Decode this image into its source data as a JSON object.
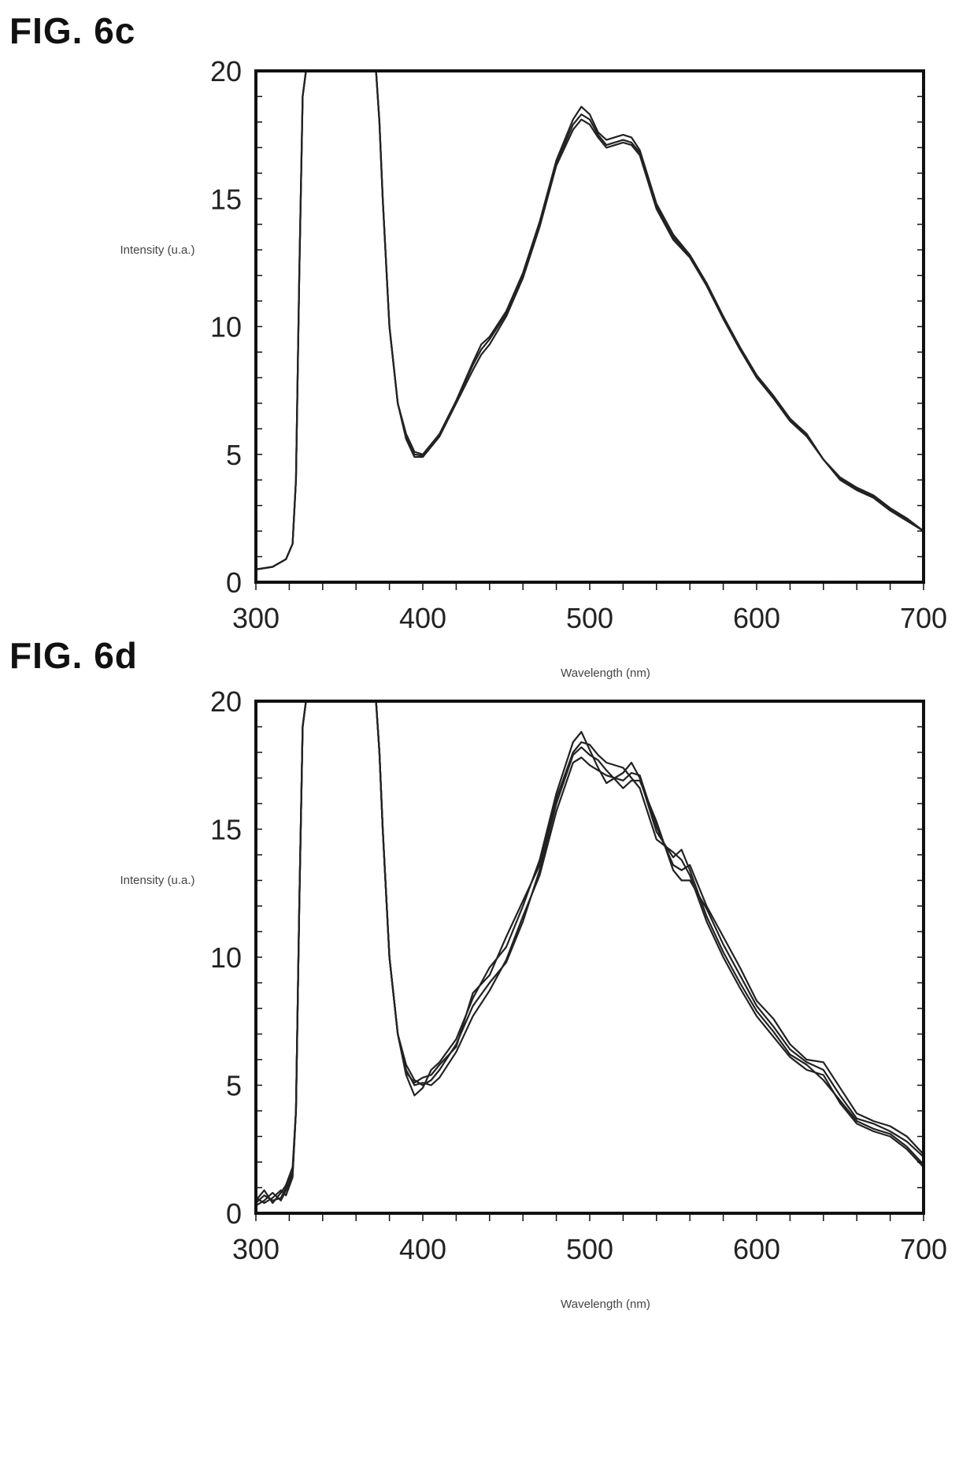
{
  "figures": [
    {
      "label": "FIG. 6c"
    },
    {
      "label": "FIG. 6d"
    }
  ],
  "chart_data": [
    {
      "type": "line",
      "title": "",
      "xlabel": "Wavelength (nm)",
      "ylabel": "Intensity (u.a.)",
      "xlim": [
        300,
        700
      ],
      "ylim": [
        0,
        20
      ],
      "xticks": [
        300,
        400,
        500,
        600,
        700
      ],
      "yticks": [
        0,
        5,
        10,
        15,
        20
      ],
      "grid": false,
      "line_color": "#222222",
      "series": [
        {
          "x": [
            300,
            310,
            318,
            322,
            324,
            326,
            328,
            330,
            372,
            374,
            376,
            380,
            385,
            390,
            395,
            400,
            410,
            420,
            430,
            435,
            440,
            450,
            460,
            470,
            480,
            490,
            495,
            500,
            505,
            510,
            520,
            525,
            530,
            540,
            550,
            560,
            570,
            580,
            590,
            600,
            610,
            620,
            630,
            640,
            650,
            660,
            670,
            680,
            690,
            700
          ],
          "y": [
            0.5,
            0.6,
            0.9,
            1.5,
            4,
            12,
            19,
            20,
            20,
            18,
            15,
            10,
            7,
            5.8,
            5.1,
            5.0,
            5.8,
            7.1,
            8.6,
            9.3,
            9.6,
            10.6,
            12.1,
            14.1,
            16.5,
            18.1,
            18.6,
            18.3,
            17.6,
            17.3,
            17.5,
            17.4,
            16.9,
            14.8,
            13.6,
            12.8,
            11.7,
            10.4,
            9.2,
            8.1,
            7.3,
            6.4,
            5.8,
            4.8,
            4.1,
            3.7,
            3.4,
            2.9,
            2.5,
            2.0
          ]
        },
        {
          "x": [
            300,
            310,
            318,
            322,
            324,
            326,
            328,
            330,
            372,
            374,
            376,
            380,
            385,
            390,
            395,
            400,
            410,
            420,
            430,
            435,
            440,
            450,
            460,
            470,
            480,
            490,
            495,
            500,
            505,
            510,
            520,
            525,
            530,
            540,
            550,
            560,
            570,
            580,
            590,
            600,
            610,
            620,
            630,
            640,
            650,
            660,
            670,
            680,
            690,
            700
          ],
          "y": [
            0.5,
            0.6,
            0.9,
            1.5,
            4,
            12,
            19,
            20,
            20,
            18,
            15,
            10,
            7,
            5.6,
            4.9,
            4.9,
            5.7,
            7.0,
            8.3,
            8.9,
            9.3,
            10.4,
            11.9,
            13.9,
            16.3,
            17.7,
            18.1,
            17.9,
            17.4,
            17.0,
            17.2,
            17.1,
            16.7,
            14.6,
            13.4,
            12.7,
            11.6,
            10.3,
            9.1,
            8.0,
            7.2,
            6.3,
            5.7,
            4.8,
            4.0,
            3.6,
            3.3,
            2.8,
            2.4,
            2.0
          ]
        },
        {
          "x": [
            300,
            310,
            318,
            322,
            324,
            326,
            328,
            330,
            372,
            374,
            376,
            380,
            385,
            390,
            395,
            400,
            410,
            420,
            430,
            435,
            440,
            450,
            460,
            470,
            480,
            490,
            495,
            500,
            505,
            510,
            520,
            525,
            530,
            540,
            550,
            560,
            570,
            580,
            590,
            600,
            610,
            620,
            630,
            640,
            650,
            660,
            670,
            680,
            690,
            700
          ],
          "y": [
            0.5,
            0.6,
            0.9,
            1.5,
            4,
            12,
            19,
            20,
            20,
            18,
            15,
            10,
            7,
            5.7,
            5.0,
            4.95,
            5.75,
            7.05,
            8.5,
            9.1,
            9.5,
            10.5,
            12.0,
            14.0,
            16.4,
            17.9,
            18.3,
            18.1,
            17.5,
            17.1,
            17.3,
            17.2,
            16.8,
            14.7,
            13.5,
            12.75,
            11.65,
            10.35,
            9.15,
            8.05,
            7.25,
            6.35,
            5.75,
            4.8,
            4.05,
            3.65,
            3.35,
            2.85,
            2.45,
            2.0
          ]
        }
      ]
    },
    {
      "type": "line",
      "title": "",
      "xlabel": "Wavelength (nm)",
      "ylabel": "Intensity (u.a.)",
      "xlim": [
        300,
        700
      ],
      "ylim": [
        0,
        20
      ],
      "xticks": [
        300,
        400,
        500,
        600,
        700
      ],
      "yticks": [
        0,
        5,
        10,
        15,
        20
      ],
      "grid": false,
      "line_color": "#222222",
      "series": [
        {
          "x": [
            300,
            305,
            310,
            315,
            318,
            322,
            324,
            326,
            328,
            330,
            372,
            374,
            376,
            380,
            385,
            390,
            395,
            400,
            405,
            410,
            420,
            430,
            440,
            450,
            460,
            470,
            480,
            490,
            495,
            500,
            505,
            510,
            520,
            525,
            530,
            540,
            550,
            555,
            560,
            570,
            580,
            590,
            600,
            610,
            620,
            630,
            640,
            650,
            660,
            670,
            680,
            690,
            700
          ],
          "y": [
            0.5,
            0.9,
            0.4,
            0.8,
            1.1,
            1.8,
            4,
            12,
            19,
            20,
            20,
            18,
            15,
            10,
            7,
            5.4,
            4.6,
            4.9,
            5.6,
            5.9,
            6.8,
            8.4,
            9.6,
            10.4,
            12.0,
            13.8,
            16.4,
            18.4,
            18.8,
            18.1,
            17.4,
            16.8,
            17.2,
            17.6,
            17.0,
            14.9,
            13.9,
            14.2,
            13.4,
            11.6,
            10.2,
            9.0,
            7.9,
            7.1,
            6.2,
            5.8,
            5.2,
            4.4,
            3.6,
            3.3,
            3.1,
            2.6,
            1.9
          ]
        },
        {
          "x": [
            300,
            305,
            310,
            315,
            318,
            322,
            324,
            326,
            328,
            330,
            372,
            374,
            376,
            380,
            385,
            390,
            395,
            400,
            405,
            410,
            420,
            430,
            440,
            450,
            460,
            470,
            480,
            490,
            495,
            500,
            505,
            510,
            520,
            525,
            530,
            540,
            550,
            555,
            560,
            570,
            580,
            590,
            600,
            610,
            620,
            630,
            640,
            650,
            660,
            670,
            680,
            690,
            700
          ],
          "y": [
            0.3,
            0.5,
            0.8,
            0.5,
            0.9,
            1.5,
            4,
            12,
            19,
            20,
            20,
            18,
            15,
            10,
            7,
            5.8,
            5.2,
            5.0,
            5.2,
            5.6,
            6.6,
            8.1,
            9.0,
            9.8,
            11.4,
            13.4,
            16.0,
            17.9,
            18.2,
            17.9,
            17.7,
            17.3,
            16.6,
            16.9,
            16.9,
            15.3,
            13.4,
            13.0,
            13.0,
            11.9,
            10.5,
            9.3,
            8.1,
            7.3,
            6.4,
            5.9,
            5.6,
            4.6,
            3.7,
            3.5,
            3.2,
            2.8,
            2.2
          ]
        },
        {
          "x": [
            300,
            305,
            310,
            315,
            318,
            322,
            324,
            326,
            328,
            330,
            372,
            374,
            376,
            380,
            385,
            390,
            395,
            400,
            405,
            410,
            420,
            430,
            440,
            450,
            460,
            470,
            480,
            490,
            495,
            500,
            505,
            510,
            520,
            525,
            530,
            540,
            550,
            555,
            560,
            570,
            580,
            590,
            600,
            610,
            620,
            630,
            640,
            650,
            660,
            670,
            680,
            690,
            700
          ],
          "y": [
            0.6,
            0.4,
            0.6,
            0.9,
            0.7,
            1.4,
            4,
            12,
            19,
            20,
            20,
            18,
            15,
            10,
            7,
            5.6,
            5.0,
            5.1,
            5.0,
            5.3,
            6.3,
            7.7,
            8.7,
            9.9,
            11.6,
            13.2,
            15.7,
            17.6,
            17.8,
            17.5,
            17.3,
            17.1,
            16.9,
            17.2,
            17.1,
            15.1,
            13.6,
            13.4,
            13.6,
            12.0,
            10.8,
            9.6,
            8.3,
            7.6,
            6.6,
            6.0,
            5.9,
            4.9,
            3.9,
            3.6,
            3.4,
            3.0,
            2.3
          ]
        },
        {
          "x": [
            300,
            305,
            310,
            315,
            318,
            322,
            324,
            326,
            328,
            330,
            372,
            374,
            376,
            380,
            385,
            390,
            395,
            400,
            405,
            410,
            420,
            430,
            440,
            450,
            460,
            470,
            480,
            490,
            495,
            500,
            505,
            510,
            520,
            525,
            530,
            540,
            550,
            555,
            560,
            570,
            580,
            590,
            600,
            610,
            620,
            630,
            640,
            650,
            660,
            670,
            680,
            690,
            700
          ],
          "y": [
            0.4,
            0.7,
            0.5,
            0.6,
            1.0,
            1.6,
            4,
            12,
            19,
            20,
            20,
            18,
            15,
            10,
            7,
            5.5,
            5.1,
            5.3,
            5.4,
            5.8,
            6.5,
            8.6,
            9.3,
            10.8,
            12.2,
            13.6,
            16.2,
            18.0,
            18.4,
            18.3,
            17.9,
            17.6,
            17.4,
            17.0,
            16.6,
            14.6,
            14.1,
            13.8,
            13.2,
            11.4,
            10.0,
            8.8,
            7.7,
            6.9,
            6.1,
            5.6,
            5.4,
            4.3,
            3.5,
            3.2,
            3.0,
            2.5,
            1.8
          ]
        }
      ]
    }
  ]
}
